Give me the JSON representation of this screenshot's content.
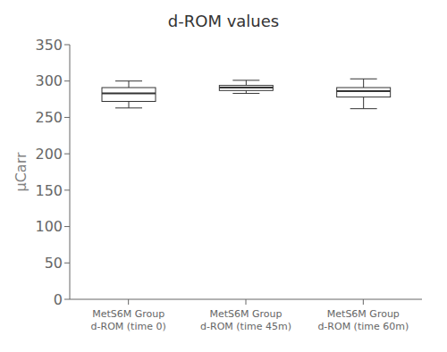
{
  "chart_data": {
    "type": "box",
    "title": "d-ROM values",
    "ylabel": "μCarr",
    "categories": [
      "MetS6M Group\nd-ROM (time 0)",
      "MetS6M Group\nd-ROM (time 45m)",
      "MetS6M Group\nd-ROM (time 60m)"
    ],
    "whislo": [
      263,
      283,
      262
    ],
    "q1": [
      272,
      287,
      278
    ],
    "med": [
      283,
      291,
      286
    ],
    "q3": [
      291,
      294,
      291
    ],
    "whishi": [
      300,
      301,
      303
    ],
    "ylim": [
      0,
      350
    ],
    "yticks": [
      0,
      50,
      100,
      150,
      200,
      250,
      300,
      350
    ],
    "grid": false,
    "color": "#333333"
  }
}
